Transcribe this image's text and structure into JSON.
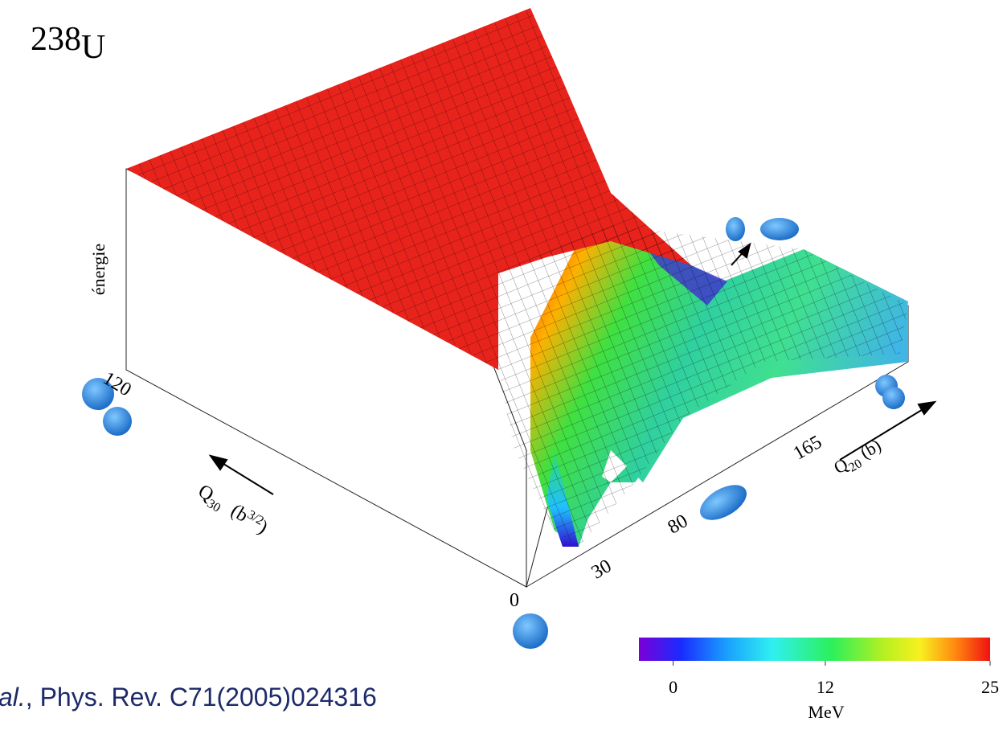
{
  "chart_data": {
    "type": "surface",
    "title": {
      "mass": "238",
      "symbol": "U"
    },
    "z_label": "énergie",
    "x_label": {
      "main": "Q",
      "sub": "20",
      "unit": "(b)"
    },
    "y_label": {
      "main": "Q",
      "sub": "30",
      "unit": "(b",
      "sup": "3/2",
      ",close": ")"
    },
    "xticks": [
      30,
      80,
      165
    ],
    "yticks": [
      0,
      120
    ],
    "colorbar": {
      "label": "MeV",
      "lim": [
        -2.7,
        25
      ],
      "ticks": [
        0,
        12,
        25
      ]
    },
    "citation": {
      "italic": "al.",
      "text": ", Phys. Rev. C71(2005)024316"
    }
  }
}
